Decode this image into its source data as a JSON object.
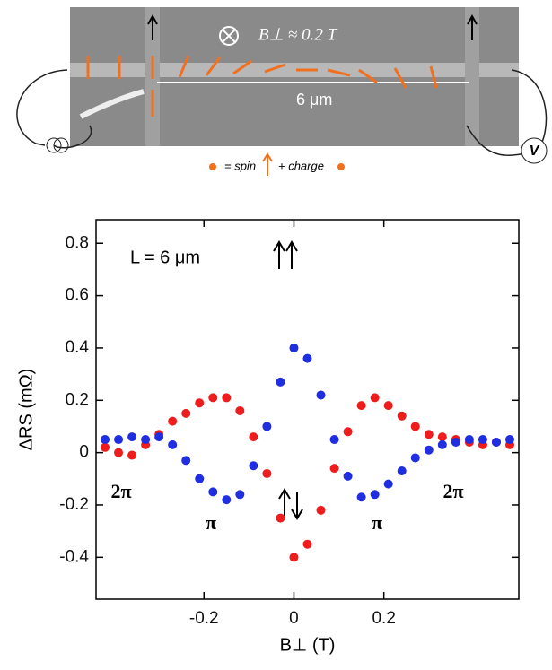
{
  "schematic": {
    "field_label": "B⊥ ≈ 0.2 T",
    "length_label": "6 μm",
    "spin_label": "= spin",
    "charge_label": "+ charge",
    "voltmeter": "V"
  },
  "chart_data": {
    "type": "scatter",
    "x_label": "B⊥ (T)",
    "y_label": "ΔRS (mΩ)",
    "x": [
      -0.42,
      -0.39,
      -0.36,
      -0.33,
      -0.3,
      -0.27,
      -0.24,
      -0.21,
      -0.18,
      -0.15,
      -0.12,
      -0.09,
      -0.06,
      -0.03,
      0.0,
      0.03,
      0.06,
      0.09,
      0.12,
      0.15,
      0.18,
      0.21,
      0.24,
      0.27,
      0.3,
      0.33,
      0.36,
      0.39,
      0.42,
      0.45,
      0.48
    ],
    "series": [
      {
        "color": "#ee1c1c",
        "values": [
          0.02,
          0,
          -0.01,
          0.03,
          0.07,
          0.12,
          0.15,
          0.19,
          0.21,
          0.21,
          0.16,
          0.06,
          -0.08,
          -0.25,
          -0.4,
          -0.35,
          -0.22,
          -0.06,
          0.08,
          0.18,
          0.21,
          0.18,
          0.14,
          0.1,
          0.07,
          0.06,
          0.05,
          0.04,
          0.03,
          0.04,
          0.03
        ]
      },
      {
        "color": "#1f2ee0",
        "values": [
          0.05,
          0.05,
          0.06,
          0.05,
          0.06,
          0.03,
          -0.03,
          -0.1,
          -0.15,
          -0.18,
          -0.16,
          -0.05,
          0.1,
          0.27,
          0.4,
          0.36,
          0.22,
          0.05,
          -0.09,
          -0.17,
          -0.16,
          -0.12,
          -0.07,
          -0.02,
          0.01,
          0.03,
          0.04,
          0.05,
          0.05,
          0.04,
          0.05
        ]
      }
    ],
    "xlim": [
      -0.44,
      0.5
    ],
    "ylim": [
      -0.56,
      0.89
    ],
    "xticks": [
      -0.2,
      0,
      0.2
    ],
    "yticks": [
      0.8,
      0.6,
      0.4,
      0.2,
      0,
      -0.2,
      -0.4
    ],
    "annotations": [
      "L = 6 μm",
      "2π",
      "π",
      "π",
      "2π"
    ]
  }
}
